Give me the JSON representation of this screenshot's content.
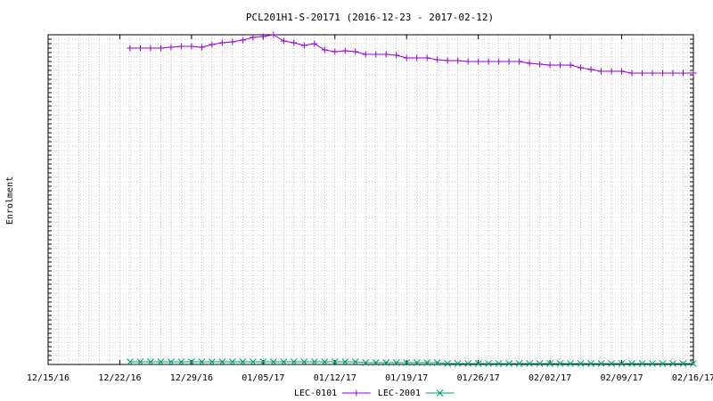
{
  "chart_data": {
    "type": "line",
    "title": "PCL201H1-S-20171 (2016-12-23 - 2017-02-12)",
    "xlabel": "",
    "ylabel": "Enrolment",
    "x_ticks": [
      "12/15/16",
      "12/22/16",
      "12/29/16",
      "01/05/17",
      "01/12/17",
      "01/19/17",
      "01/26/17",
      "02/02/17",
      "02/09/17",
      "02/16/17"
    ],
    "xlim": [
      "2016-12-15",
      "2017-02-16"
    ],
    "ylim": [
      0,
      370
    ],
    "grid": true,
    "legend_position": "bottom-center",
    "series": [
      {
        "name": "LEC-0101",
        "color": "#9400d3",
        "marker": "+",
        "points": [
          [
            "2016-12-23",
            355
          ],
          [
            "2016-12-24",
            355
          ],
          [
            "2016-12-25",
            355
          ],
          [
            "2016-12-26",
            355
          ],
          [
            "2016-12-27",
            356
          ],
          [
            "2016-12-28",
            357
          ],
          [
            "2016-12-29",
            357
          ],
          [
            "2016-12-30",
            356
          ],
          [
            "2016-12-31",
            359
          ],
          [
            "2017-01-01",
            361
          ],
          [
            "2017-01-02",
            362
          ],
          [
            "2017-01-03",
            364
          ],
          [
            "2017-01-04",
            367
          ],
          [
            "2017-01-05",
            368
          ],
          [
            "2017-01-06",
            370
          ],
          [
            "2017-01-07",
            363
          ],
          [
            "2017-01-08",
            361
          ],
          [
            "2017-01-09",
            358
          ],
          [
            "2017-01-10",
            360
          ],
          [
            "2017-01-11",
            353
          ],
          [
            "2017-01-12",
            351
          ],
          [
            "2017-01-13",
            352
          ],
          [
            "2017-01-14",
            351
          ],
          [
            "2017-01-15",
            348
          ],
          [
            "2017-01-16",
            348
          ],
          [
            "2017-01-17",
            348
          ],
          [
            "2017-01-18",
            347
          ],
          [
            "2017-01-19",
            344
          ],
          [
            "2017-01-20",
            344
          ],
          [
            "2017-01-21",
            344
          ],
          [
            "2017-01-22",
            342
          ],
          [
            "2017-01-23",
            341
          ],
          [
            "2017-01-24",
            341
          ],
          [
            "2017-01-25",
            340
          ],
          [
            "2017-01-26",
            340
          ],
          [
            "2017-01-27",
            340
          ],
          [
            "2017-01-28",
            340
          ],
          [
            "2017-01-29",
            340
          ],
          [
            "2017-01-30",
            340
          ],
          [
            "2017-01-31",
            338
          ],
          [
            "2017-02-01",
            337
          ],
          [
            "2017-02-02",
            336
          ],
          [
            "2017-02-03",
            336
          ],
          [
            "2017-02-04",
            336
          ],
          [
            "2017-02-05",
            333
          ],
          [
            "2017-02-06",
            331
          ],
          [
            "2017-02-07",
            329
          ],
          [
            "2017-02-08",
            329
          ],
          [
            "2017-02-09",
            329
          ],
          [
            "2017-02-10",
            327
          ],
          [
            "2017-02-11",
            327
          ],
          [
            "2017-02-12",
            327
          ],
          [
            "2017-02-13",
            327
          ],
          [
            "2017-02-14",
            327
          ],
          [
            "2017-02-15",
            327
          ],
          [
            "2017-02-16",
            327
          ]
        ]
      },
      {
        "name": "LEC-2001",
        "color": "#009e73",
        "marker": "x",
        "points": [
          [
            "2016-12-23",
            3
          ],
          [
            "2016-12-24",
            3
          ],
          [
            "2016-12-25",
            3
          ],
          [
            "2016-12-26",
            3
          ],
          [
            "2016-12-27",
            3
          ],
          [
            "2016-12-28",
            3
          ],
          [
            "2016-12-29",
            3
          ],
          [
            "2016-12-30",
            3
          ],
          [
            "2016-12-31",
            3
          ],
          [
            "2017-01-01",
            3
          ],
          [
            "2017-01-02",
            3
          ],
          [
            "2017-01-03",
            3
          ],
          [
            "2017-01-04",
            3
          ],
          [
            "2017-01-05",
            3
          ],
          [
            "2017-01-06",
            3
          ],
          [
            "2017-01-07",
            3
          ],
          [
            "2017-01-08",
            3
          ],
          [
            "2017-01-09",
            3
          ],
          [
            "2017-01-10",
            3
          ],
          [
            "2017-01-11",
            3
          ],
          [
            "2017-01-12",
            3
          ],
          [
            "2017-01-13",
            3
          ],
          [
            "2017-01-14",
            3
          ],
          [
            "2017-01-15",
            2
          ],
          [
            "2017-01-16",
            2
          ],
          [
            "2017-01-17",
            2
          ],
          [
            "2017-01-18",
            2
          ],
          [
            "2017-01-19",
            2
          ],
          [
            "2017-01-20",
            2
          ],
          [
            "2017-01-21",
            2
          ],
          [
            "2017-01-22",
            2
          ],
          [
            "2017-01-23",
            1
          ],
          [
            "2017-01-24",
            1
          ],
          [
            "2017-01-25",
            1
          ],
          [
            "2017-01-26",
            1
          ],
          [
            "2017-01-27",
            1
          ],
          [
            "2017-01-28",
            1
          ],
          [
            "2017-01-29",
            1
          ],
          [
            "2017-01-30",
            1
          ],
          [
            "2017-01-31",
            1
          ],
          [
            "2017-02-01",
            1
          ],
          [
            "2017-02-02",
            1
          ],
          [
            "2017-02-03",
            1
          ],
          [
            "2017-02-04",
            1
          ],
          [
            "2017-02-05",
            1
          ],
          [
            "2017-02-06",
            1
          ],
          [
            "2017-02-07",
            1
          ],
          [
            "2017-02-08",
            1
          ],
          [
            "2017-02-09",
            1
          ],
          [
            "2017-02-10",
            1
          ],
          [
            "2017-02-11",
            1
          ],
          [
            "2017-02-12",
            1
          ],
          [
            "2017-02-13",
            1
          ],
          [
            "2017-02-14",
            1
          ],
          [
            "2017-02-15",
            1
          ],
          [
            "2017-02-16",
            1
          ]
        ]
      }
    ]
  }
}
